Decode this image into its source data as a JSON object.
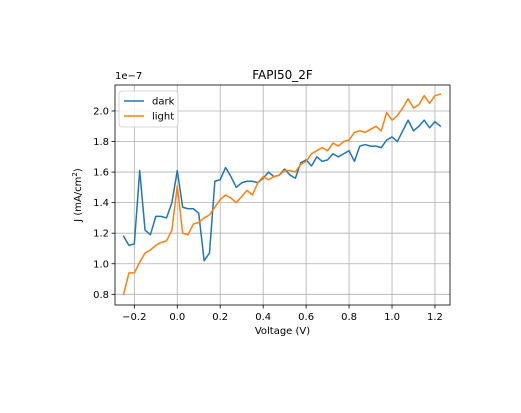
{
  "chart_data": {
    "type": "line",
    "title": "FAPI50_2F",
    "xlabel": "Voltage (V)",
    "ylabel_main": "J (mA/cm",
    "ylabel_sup": "2",
    "ylabel_end": ")",
    "offset_text": "1e−7",
    "xlim": [
      -0.29,
      1.27
    ],
    "ylim": [
      0.73,
      2.17
    ],
    "y_scale": 1e-07,
    "grid": true,
    "legend_position": "upper-left",
    "x_ticks": [
      -0.2,
      0.0,
      0.2,
      0.4,
      0.6,
      0.8,
      1.0,
      1.2
    ],
    "x_tick_labels": [
      "−0.2",
      "0.0",
      "0.2",
      "0.4",
      "0.6",
      "0.8",
      "1.0",
      "1.2"
    ],
    "y_ticks": [
      0.8,
      1.0,
      1.2,
      1.4,
      1.6,
      1.8,
      2.0
    ],
    "y_tick_labels": [
      "0.8",
      "1.0",
      "1.2",
      "1.4",
      "1.6",
      "1.8",
      "2.0"
    ],
    "x": [
      -0.25,
      -0.225,
      -0.2,
      -0.175,
      -0.15,
      -0.125,
      -0.1,
      -0.075,
      -0.05,
      -0.025,
      0.0,
      0.025,
      0.05,
      0.075,
      0.1,
      0.125,
      0.15,
      0.175,
      0.2,
      0.225,
      0.25,
      0.275,
      0.3,
      0.325,
      0.35,
      0.375,
      0.4,
      0.425,
      0.45,
      0.475,
      0.5,
      0.525,
      0.55,
      0.575,
      0.6,
      0.625,
      0.65,
      0.675,
      0.7,
      0.725,
      0.75,
      0.775,
      0.8,
      0.825,
      0.85,
      0.875,
      0.9,
      0.925,
      0.95,
      0.975,
      1.0,
      1.025,
      1.05,
      1.075,
      1.1,
      1.125,
      1.15,
      1.175,
      1.2,
      1.225
    ],
    "series": [
      {
        "name": "dark",
        "color": "#1f77b4",
        "values": [
          1.18,
          1.12,
          1.13,
          1.61,
          1.22,
          1.19,
          1.31,
          1.31,
          1.3,
          1.4,
          1.61,
          1.37,
          1.36,
          1.36,
          1.33,
          1.02,
          1.07,
          1.54,
          1.55,
          1.63,
          1.57,
          1.5,
          1.53,
          1.54,
          1.54,
          1.53,
          1.56,
          1.6,
          1.57,
          1.58,
          1.62,
          1.58,
          1.56,
          1.66,
          1.68,
          1.64,
          1.7,
          1.67,
          1.68,
          1.72,
          1.7,
          1.72,
          1.74,
          1.67,
          1.77,
          1.78,
          1.77,
          1.77,
          1.76,
          1.81,
          1.83,
          1.8,
          1.87,
          1.94,
          1.87,
          1.9,
          1.94,
          1.89,
          1.93,
          1.9
        ]
      },
      {
        "name": "light",
        "color": "#ff7f0e",
        "values": [
          0.8,
          0.94,
          0.94,
          1.01,
          1.07,
          1.09,
          1.12,
          1.14,
          1.15,
          1.22,
          1.51,
          1.2,
          1.19,
          1.26,
          1.27,
          1.3,
          1.32,
          1.37,
          1.42,
          1.45,
          1.43,
          1.4,
          1.44,
          1.48,
          1.45,
          1.53,
          1.57,
          1.55,
          1.57,
          1.58,
          1.61,
          1.61,
          1.6,
          1.65,
          1.67,
          1.72,
          1.74,
          1.76,
          1.74,
          1.79,
          1.77,
          1.8,
          1.81,
          1.86,
          1.87,
          1.86,
          1.88,
          1.9,
          1.87,
          1.99,
          1.94,
          1.97,
          2.02,
          2.08,
          2.02,
          2.04,
          2.1,
          2.05,
          2.1,
          2.11
        ]
      }
    ]
  }
}
